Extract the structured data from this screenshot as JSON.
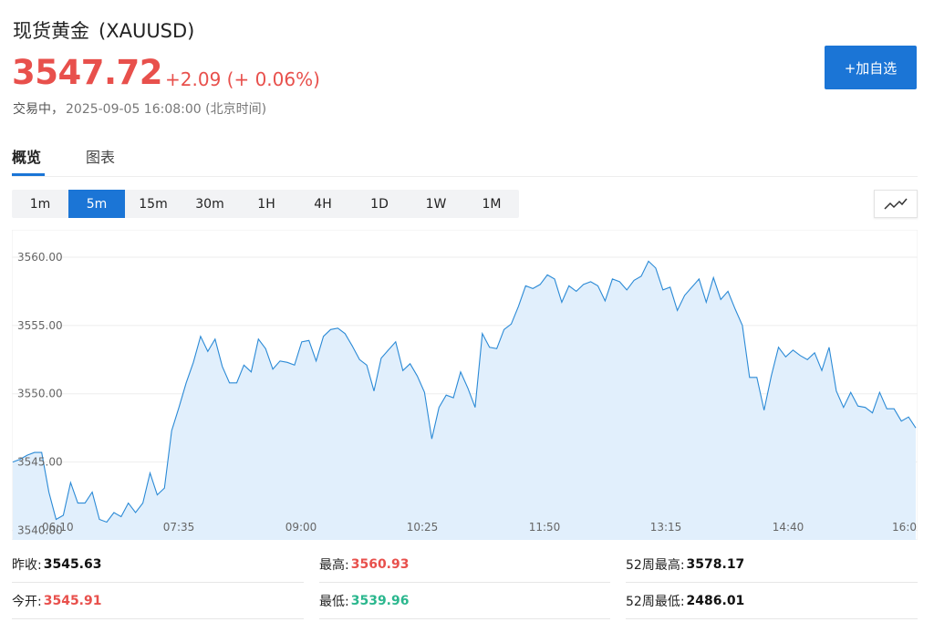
{
  "header": {
    "name": "现货黄金",
    "symbol": "(XAUUSD)",
    "price": "3547.72",
    "change": "+2.09 (+ 0.06%)",
    "status": "交易中，",
    "timestamp": "2025-09-05 16:08:00 (北京时间)",
    "add_button": "+加自选"
  },
  "tabs": [
    {
      "label": "概览",
      "active": true
    },
    {
      "label": "图表",
      "active": false
    }
  ],
  "periods": [
    "1m",
    "5m",
    "15m",
    "30m",
    "1H",
    "4H",
    "1D",
    "1W",
    "1M"
  ],
  "active_period": "5m",
  "chart_type_icon": "line-chart-icon",
  "colors": {
    "up": "#e8504c",
    "down": "#2bb78e",
    "accent": "#1b75d6",
    "line": "#2b8ad6",
    "fill": "#e1effc"
  },
  "chart_data": {
    "type": "area",
    "x_ticks": [
      "06:10",
      "07:35",
      "09:00",
      "10:25",
      "11:50",
      "13:15",
      "14:40",
      "16:0"
    ],
    "y_ticks": [
      "3540.00",
      "3545.00",
      "3550.00",
      "3555.00",
      "3560.00"
    ],
    "ylim": [
      3539.3,
      3562.0
    ],
    "grid": true,
    "y_tick_values": [
      3540,
      3545,
      3550,
      3555,
      3560
    ],
    "values": [
      3545.0,
      3545.2,
      3545.5,
      3545.7,
      3545.7,
      3542.8,
      3540.8,
      3541.1,
      3543.5,
      3542.0,
      3542.0,
      3542.8,
      3540.8,
      3540.6,
      3541.3,
      3541.0,
      3542.0,
      3541.3,
      3542.0,
      3544.2,
      3542.6,
      3543.1,
      3547.3,
      3549.0,
      3550.8,
      3552.3,
      3554.2,
      3553.1,
      3554.0,
      3552.0,
      3550.8,
      3550.8,
      3552.1,
      3551.6,
      3554.0,
      3553.3,
      3551.8,
      3552.4,
      3552.3,
      3552.1,
      3553.8,
      3553.9,
      3552.4,
      3554.2,
      3554.7,
      3554.8,
      3554.4,
      3553.5,
      3552.5,
      3552.1,
      3550.2,
      3552.6,
      3553.2,
      3553.8,
      3551.7,
      3552.2,
      3551.3,
      3550.1,
      3546.7,
      3549.0,
      3549.9,
      3549.7,
      3551.6,
      3550.4,
      3549.0,
      3554.4,
      3553.4,
      3553.3,
      3554.7,
      3555.1,
      3556.4,
      3557.9,
      3557.7,
      3558.0,
      3558.7,
      3558.4,
      3556.7,
      3557.9,
      3557.5,
      3558.0,
      3558.2,
      3557.9,
      3556.8,
      3558.4,
      3558.2,
      3557.6,
      3558.3,
      3558.6,
      3559.7,
      3559.2,
      3557.6,
      3557.8,
      3556.1,
      3557.2,
      3557.8,
      3558.4,
      3556.7,
      3558.5,
      3556.9,
      3557.5,
      3556.2,
      3555.0,
      3551.2,
      3551.2,
      3548.8,
      3551.3,
      3553.4,
      3552.7,
      3553.2,
      3552.8,
      3552.5,
      3553.0,
      3551.7,
      3553.4,
      3550.2,
      3549.0,
      3550.1,
      3549.1,
      3549.0,
      3548.6,
      3550.1,
      3548.9,
      3548.9,
      3548.0,
      3548.3,
      3547.5
    ]
  },
  "stats": {
    "prev_close_label": "昨收:",
    "prev_close": "3545.63",
    "open_label": "今开:",
    "open": "3545.91",
    "high_label": "最高:",
    "high": "3560.93",
    "low_label": "最低:",
    "low": "3539.96",
    "w52_high_label": "52周最高:",
    "w52_high": "3578.17",
    "w52_low_label": "52周最低:",
    "w52_low": "2486.01"
  }
}
